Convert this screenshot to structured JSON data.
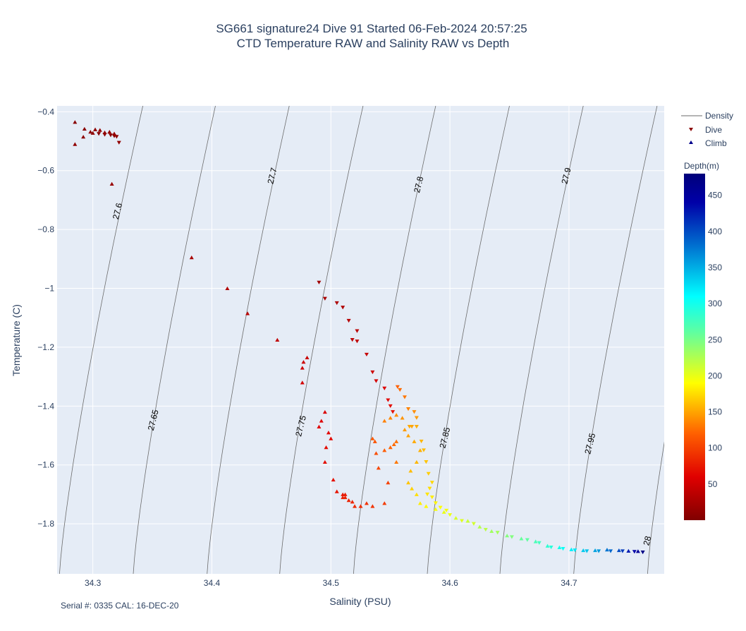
{
  "chart_data": {
    "type": "scatter",
    "title_line1": "SG661 signature24 Dive 91 Started 06-Feb-2024 20:57:25",
    "title_line2": "CTD Temperature RAW and Salinity RAW vs Depth",
    "xlabel": "Salinity (PSU)",
    "ylabel": "Temperature (C)",
    "xlim": [
      34.27,
      34.78
    ],
    "ylim": [
      -1.97,
      -0.38
    ],
    "x_ticks": [
      {
        "value": 34.3,
        "label": "34.3"
      },
      {
        "value": 34.4,
        "label": "34.4"
      },
      {
        "value": 34.5,
        "label": "34.5"
      },
      {
        "value": 34.6,
        "label": "34.6"
      },
      {
        "value": 34.7,
        "label": "34.7"
      }
    ],
    "y_ticks": [
      {
        "value": -0.4,
        "label": "−0.4"
      },
      {
        "value": -0.6,
        "label": "−0.6"
      },
      {
        "value": -0.8,
        "label": "−0.8"
      },
      {
        "value": -1.0,
        "label": "−1"
      },
      {
        "value": -1.2,
        "label": "−1.2"
      },
      {
        "value": -1.4,
        "label": "−1.4"
      },
      {
        "value": -1.6,
        "label": "−1.6"
      },
      {
        "value": -1.8,
        "label": "−1.8"
      }
    ],
    "grid": true,
    "plot_background": "#e5ecf6",
    "density_color": "#6b6b6b",
    "density_contours": [
      {
        "label": "27.6",
        "s_at_top": 34.342,
        "s_at_bottom": 34.272,
        "label_s": 34.323,
        "label_t": -0.74
      },
      {
        "label": "27.65",
        "s_at_top": 34.403,
        "s_at_bottom": 34.334,
        "label_s": 34.353,
        "label_t": -1.45
      },
      {
        "label": "27.7",
        "s_at_top": 34.465,
        "s_at_bottom": 34.396,
        "label_s": 34.453,
        "label_t": -0.62
      },
      {
        "label": "27.75",
        "s_at_top": 34.527,
        "s_at_bottom": 34.457,
        "label_s": 34.477,
        "label_t": -1.47
      },
      {
        "label": "27.8",
        "s_at_top": 34.588,
        "s_at_bottom": 34.519,
        "label_s": 34.576,
        "label_t": -0.65
      },
      {
        "label": "27.85",
        "s_at_top": 34.65,
        "s_at_bottom": 34.581,
        "label_s": 34.598,
        "label_t": -1.51
      },
      {
        "label": "27.9",
        "s_at_top": 34.712,
        "s_at_bottom": 34.642,
        "label_s": 34.7,
        "label_t": -0.62
      },
      {
        "label": "27.95",
        "s_at_top": 34.774,
        "s_at_bottom": 34.704,
        "label_s": 34.72,
        "label_t": -1.53
      },
      {
        "label": "28",
        "s_at_top": 34.835,
        "s_at_bottom": 34.766,
        "label_s": 34.768,
        "label_t": -1.86
      }
    ],
    "colorscale": {
      "title": "Depth(m)",
      "min": 0,
      "max": 480,
      "ticks": [
        50,
        100,
        150,
        200,
        250,
        300,
        350,
        400,
        450
      ],
      "stops": [
        {
          "value": 0,
          "color": "#800000"
        },
        {
          "value": 60,
          "color": "#e00000"
        },
        {
          "value": 120,
          "color": "#ff6000"
        },
        {
          "value": 190,
          "color": "#ffff00"
        },
        {
          "value": 260,
          "color": "#60ffa0"
        },
        {
          "value": 310,
          "color": "#00ffff"
        },
        {
          "value": 380,
          "color": "#0070d0"
        },
        {
          "value": 440,
          "color": "#0000a8"
        },
        {
          "value": 480,
          "color": "#00007a"
        }
      ]
    },
    "legend": [
      {
        "name": "Density",
        "symbol": "line"
      },
      {
        "name": "Dive",
        "symbol": "triangle-down"
      },
      {
        "name": "Climb",
        "symbol": "triangle-up"
      }
    ],
    "series": [
      {
        "name": "Dive",
        "marker": "triangle-down",
        "points": [
          [
            34.305,
            -0.475,
            5
          ],
          [
            34.31,
            -0.478,
            6
          ],
          [
            34.315,
            -0.48,
            7
          ],
          [
            34.318,
            -0.483,
            8
          ],
          [
            34.32,
            -0.485,
            9
          ],
          [
            34.322,
            -0.505,
            10
          ],
          [
            34.49,
            -0.98,
            20
          ],
          [
            34.495,
            -1.035,
            25
          ],
          [
            34.505,
            -1.05,
            28
          ],
          [
            34.51,
            -1.065,
            30
          ],
          [
            34.515,
            -1.11,
            33
          ],
          [
            34.522,
            -1.145,
            36
          ],
          [
            34.518,
            -1.175,
            38
          ],
          [
            34.522,
            -1.18,
            40
          ],
          [
            34.53,
            -1.225,
            44
          ],
          [
            34.535,
            -1.285,
            48
          ],
          [
            34.538,
            -1.315,
            52
          ],
          [
            34.545,
            -1.34,
            58
          ],
          [
            34.548,
            -1.38,
            62
          ],
          [
            34.55,
            -1.4,
            66
          ],
          [
            34.552,
            -1.42,
            70
          ],
          [
            34.556,
            -1.335,
            120
          ],
          [
            34.558,
            -1.345,
            125
          ],
          [
            34.562,
            -1.37,
            130
          ],
          [
            34.565,
            -1.41,
            135
          ],
          [
            34.57,
            -1.42,
            140
          ],
          [
            34.572,
            -1.44,
            145
          ],
          [
            34.568,
            -1.47,
            150
          ],
          [
            34.566,
            -1.47,
            152
          ],
          [
            34.572,
            -1.47,
            154
          ],
          [
            34.576,
            -1.52,
            158
          ],
          [
            34.578,
            -1.55,
            160
          ],
          [
            34.58,
            -1.59,
            164
          ],
          [
            34.582,
            -1.63,
            168
          ],
          [
            34.585,
            -1.66,
            172
          ],
          [
            34.583,
            -1.68,
            175
          ],
          [
            34.581,
            -1.7,
            178
          ],
          [
            34.585,
            -1.71,
            182
          ],
          [
            34.588,
            -1.73,
            186
          ],
          [
            34.592,
            -1.745,
            190
          ],
          [
            34.597,
            -1.755,
            194
          ],
          [
            34.6,
            -1.77,
            198
          ],
          [
            34.61,
            -1.79,
            204
          ],
          [
            34.62,
            -1.8,
            210
          ],
          [
            34.63,
            -1.82,
            220
          ],
          [
            34.64,
            -1.83,
            230
          ],
          [
            34.652,
            -1.845,
            245
          ],
          [
            34.665,
            -1.855,
            260
          ],
          [
            34.675,
            -1.865,
            275
          ],
          [
            34.685,
            -1.88,
            290
          ],
          [
            34.695,
            -1.885,
            305
          ],
          [
            34.705,
            -1.89,
            320
          ],
          [
            34.715,
            -1.893,
            340
          ],
          [
            34.725,
            -1.893,
            360
          ],
          [
            34.735,
            -1.893,
            385
          ],
          [
            34.745,
            -1.893,
            410
          ],
          [
            34.755,
            -1.895,
            440
          ],
          [
            34.762,
            -1.897,
            470
          ]
        ]
      },
      {
        "name": "Climb",
        "marker": "triangle-up",
        "points": [
          [
            34.285,
            -0.435,
            5
          ],
          [
            34.293,
            -0.458,
            6
          ],
          [
            34.298,
            -0.468,
            7
          ],
          [
            34.3,
            -0.472,
            8
          ],
          [
            34.302,
            -0.46,
            9
          ],
          [
            34.306,
            -0.462,
            10
          ],
          [
            34.31,
            -0.47,
            11
          ],
          [
            34.314,
            -0.468,
            12
          ],
          [
            34.318,
            -0.474,
            13
          ],
          [
            34.292,
            -0.485,
            8
          ],
          [
            34.285,
            -0.51,
            10
          ],
          [
            34.316,
            -0.645,
            15
          ],
          [
            34.383,
            -0.895,
            25
          ],
          [
            34.413,
            -1.0,
            30
          ],
          [
            34.43,
            -1.085,
            35
          ],
          [
            34.455,
            -1.175,
            40
          ],
          [
            34.48,
            -1.235,
            45
          ],
          [
            34.477,
            -1.25,
            47
          ],
          [
            34.476,
            -1.27,
            49
          ],
          [
            34.476,
            -1.32,
            52
          ],
          [
            34.495,
            -1.42,
            56
          ],
          [
            34.492,
            -1.45,
            58
          ],
          [
            34.49,
            -1.47,
            60
          ],
          [
            34.498,
            -1.49,
            62
          ],
          [
            34.5,
            -1.51,
            64
          ],
          [
            34.496,
            -1.54,
            66
          ],
          [
            34.495,
            -1.59,
            68
          ],
          [
            34.502,
            -1.65,
            70
          ],
          [
            34.505,
            -1.69,
            72
          ],
          [
            34.51,
            -1.7,
            74
          ],
          [
            34.512,
            -1.7,
            76
          ],
          [
            34.51,
            -1.71,
            78
          ],
          [
            34.512,
            -1.71,
            80
          ],
          [
            34.515,
            -1.72,
            82
          ],
          [
            34.518,
            -1.725,
            84
          ],
          [
            34.52,
            -1.74,
            86
          ],
          [
            34.525,
            -1.74,
            88
          ],
          [
            34.53,
            -1.73,
            90
          ],
          [
            34.535,
            -1.74,
            92
          ],
          [
            34.545,
            -1.73,
            96
          ],
          [
            34.548,
            -1.66,
            100
          ],
          [
            34.54,
            -1.61,
            104
          ],
          [
            34.538,
            -1.56,
            108
          ],
          [
            34.537,
            -1.52,
            112
          ],
          [
            34.535,
            -1.51,
            115
          ],
          [
            34.545,
            -1.55,
            118
          ],
          [
            34.55,
            -1.54,
            121
          ],
          [
            34.553,
            -1.53,
            124
          ],
          [
            34.555,
            -1.52,
            127
          ],
          [
            34.555,
            -1.59,
            130
          ],
          [
            34.545,
            -1.45,
            134
          ],
          [
            34.55,
            -1.44,
            137
          ],
          [
            34.555,
            -1.43,
            140
          ],
          [
            34.56,
            -1.44,
            143
          ],
          [
            34.562,
            -1.48,
            146
          ],
          [
            34.565,
            -1.5,
            149
          ],
          [
            34.57,
            -1.52,
            152
          ],
          [
            34.575,
            -1.55,
            155
          ],
          [
            34.572,
            -1.59,
            158
          ],
          [
            34.567,
            -1.62,
            161
          ],
          [
            34.565,
            -1.66,
            164
          ],
          [
            34.568,
            -1.68,
            170
          ],
          [
            34.572,
            -1.7,
            176
          ],
          [
            34.575,
            -1.73,
            182
          ],
          [
            34.58,
            -1.74,
            188
          ],
          [
            34.588,
            -1.75,
            194
          ],
          [
            34.595,
            -1.76,
            200
          ],
          [
            34.605,
            -1.78,
            208
          ],
          [
            34.615,
            -1.79,
            214
          ],
          [
            34.625,
            -1.81,
            222
          ],
          [
            34.635,
            -1.825,
            232
          ],
          [
            34.648,
            -1.84,
            244
          ],
          [
            34.66,
            -1.85,
            258
          ],
          [
            34.672,
            -1.86,
            272
          ],
          [
            34.682,
            -1.875,
            286
          ],
          [
            34.692,
            -1.88,
            300
          ],
          [
            34.702,
            -1.887,
            318
          ],
          [
            34.712,
            -1.89,
            336
          ],
          [
            34.722,
            -1.89,
            356
          ],
          [
            34.732,
            -1.888,
            378
          ],
          [
            34.742,
            -1.89,
            400
          ],
          [
            34.75,
            -1.892,
            425
          ],
          [
            34.758,
            -1.893,
            455
          ]
        ]
      }
    ],
    "footnote": "Serial #: 0335  CAL: 16-DEC-20"
  }
}
